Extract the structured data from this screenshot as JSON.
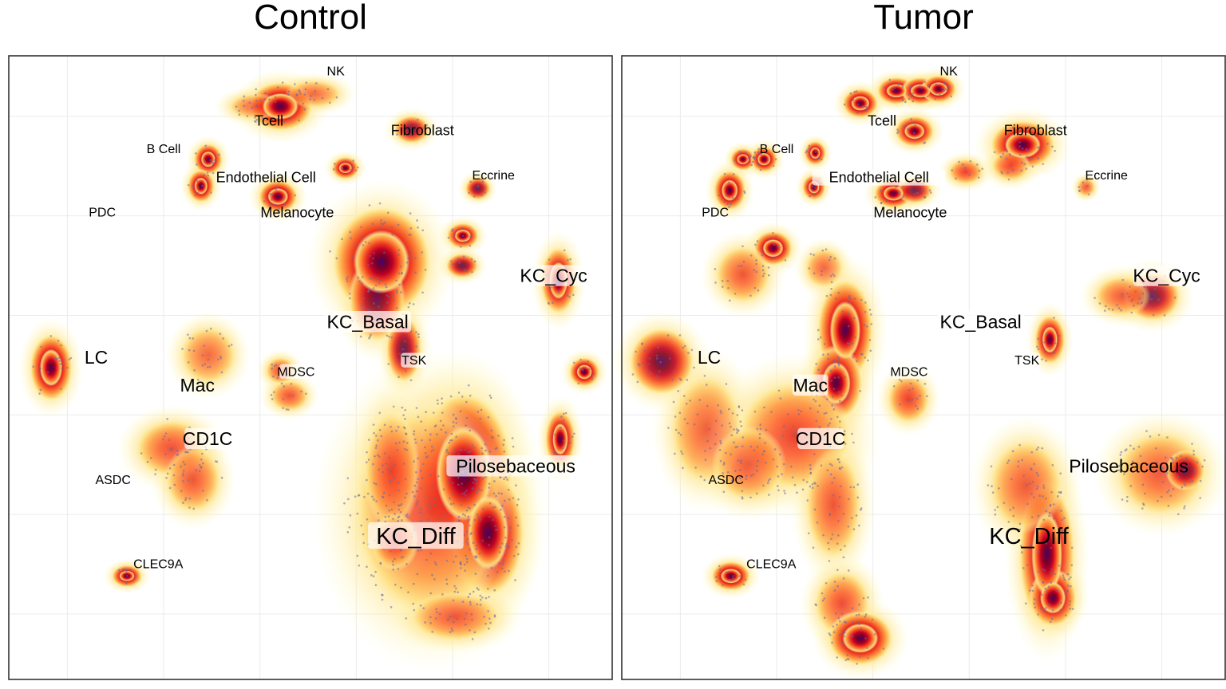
{
  "panels": [
    {
      "title": "Control"
    },
    {
      "title": "Tumor"
    }
  ],
  "chart_data": [
    {
      "type": "scatter",
      "subtype": "2d-density-embedding",
      "title": "Control",
      "xlabel": "",
      "ylabel": "",
      "grid": true,
      "legend": "none",
      "colors": {
        "low": "#ffffcc",
        "mid": "#fd8d3c",
        "high": "#bd0026",
        "peak": "#49006a",
        "point": "#6a6aa0"
      },
      "xlim": [
        0,
        100
      ],
      "ylim": [
        0,
        100
      ],
      "labels": [
        {
          "text": "NK",
          "x": 54.2,
          "y": 97.7,
          "size": "s"
        },
        {
          "text": "Tcell",
          "x": 43.1,
          "y": 89.7,
          "size": "m"
        },
        {
          "text": "Fibroblast",
          "x": 68.6,
          "y": 88.2,
          "size": "m"
        },
        {
          "text": "B Cell",
          "x": 25.6,
          "y": 85.2,
          "size": "s"
        },
        {
          "text": "Endothelial Cell",
          "x": 42.6,
          "y": 80.6,
          "size": "m"
        },
        {
          "text": "Eccrine",
          "x": 80.4,
          "y": 81.0,
          "size": "s"
        },
        {
          "text": "PDC",
          "x": 15.4,
          "y": 75.0,
          "size": "s"
        },
        {
          "text": "Melanocyte",
          "x": 47.8,
          "y": 75.0,
          "size": "m"
        },
        {
          "text": "KC_Cyc",
          "x": 90.4,
          "y": 64.8,
          "size": "l",
          "box": true
        },
        {
          "text": "KC_Basal",
          "x": 59.5,
          "y": 57.4,
          "size": "l",
          "box": true
        },
        {
          "text": "TSK",
          "x": 67.2,
          "y": 51.2,
          "size": "s",
          "box": true
        },
        {
          "text": "LC",
          "x": 14.4,
          "y": 51.7,
          "size": "l"
        },
        {
          "text": "Mac",
          "x": 31.2,
          "y": 47.2,
          "size": "l"
        },
        {
          "text": "MDSC",
          "x": 47.6,
          "y": 49.4,
          "size": "s",
          "box": true
        },
        {
          "text": "CD1C",
          "x": 32.9,
          "y": 38.6,
          "size": "l",
          "box": true
        },
        {
          "text": "Pilosebaceous",
          "x": 84.1,
          "y": 34.2,
          "size": "l",
          "box": true
        },
        {
          "text": "ASDC",
          "x": 17.2,
          "y": 32.0,
          "size": "s"
        },
        {
          "text": "KC_Diff",
          "x": 67.5,
          "y": 23.0,
          "size": "xl",
          "box": true
        },
        {
          "text": "CLEC9A",
          "x": 24.7,
          "y": 18.5,
          "size": "s"
        }
      ],
      "density_hotspots": [
        {
          "x": 45.0,
          "y": 92.0,
          "rx": 3.5,
          "ry": 2.5,
          "level": 1.0
        },
        {
          "x": 41.0,
          "y": 92.0,
          "rx": 3.0,
          "ry": 1.2,
          "level": 0.35
        },
        {
          "x": 50.5,
          "y": 94.0,
          "rx": 3.0,
          "ry": 1.3,
          "level": 0.25
        },
        {
          "x": 33.0,
          "y": 83.5,
          "rx": 1.4,
          "ry": 1.5,
          "level": 0.95
        },
        {
          "x": 31.8,
          "y": 79.2,
          "rx": 1.3,
          "ry": 1.6,
          "level": 0.95
        },
        {
          "x": 44.6,
          "y": 77.5,
          "rx": 2.0,
          "ry": 1.6,
          "level": 1.0
        },
        {
          "x": 55.8,
          "y": 82.1,
          "rx": 1.3,
          "ry": 1.0,
          "level": 0.9
        },
        {
          "x": 66.8,
          "y": 88.3,
          "rx": 1.8,
          "ry": 1.3,
          "level": 0.7
        },
        {
          "x": 77.8,
          "y": 78.8,
          "rx": 1.2,
          "ry": 1.0,
          "level": 0.75
        },
        {
          "x": 75.3,
          "y": 71.2,
          "rx": 1.6,
          "ry": 1.2,
          "level": 0.85
        },
        {
          "x": 75.2,
          "y": 66.4,
          "rx": 1.6,
          "ry": 1.1,
          "level": 0.75
        },
        {
          "x": 61.8,
          "y": 67.0,
          "rx": 5.5,
          "ry": 6.0,
          "level": 1.0
        },
        {
          "x": 61.0,
          "y": 61.0,
          "rx": 3.0,
          "ry": 4.5,
          "level": 0.7
        },
        {
          "x": 65.5,
          "y": 53.0,
          "rx": 1.8,
          "ry": 3.5,
          "level": 0.75
        },
        {
          "x": 91.2,
          "y": 64.0,
          "rx": 1.8,
          "ry": 3.5,
          "level": 0.85
        },
        {
          "x": 95.5,
          "y": 49.3,
          "rx": 1.5,
          "ry": 1.4,
          "level": 1.0
        },
        {
          "x": 91.5,
          "y": 38.5,
          "rx": 1.5,
          "ry": 3.0,
          "level": 0.9
        },
        {
          "x": 6.9,
          "y": 50.0,
          "rx": 2.2,
          "ry": 3.5,
          "level": 1.0
        },
        {
          "x": 33.0,
          "y": 52.0,
          "rx": 3.0,
          "ry": 3.0,
          "level": 0.25
        },
        {
          "x": 45.0,
          "y": 49.5,
          "rx": 1.5,
          "ry": 1.3,
          "level": 0.55
        },
        {
          "x": 46.5,
          "y": 45.5,
          "rx": 2.0,
          "ry": 1.5,
          "level": 0.45
        },
        {
          "x": 27.0,
          "y": 37.0,
          "rx": 4.0,
          "ry": 3.0,
          "level": 0.55
        },
        {
          "x": 30.5,
          "y": 32.0,
          "rx": 3.0,
          "ry": 3.5,
          "level": 0.45
        },
        {
          "x": 19.5,
          "y": 16.5,
          "rx": 1.5,
          "ry": 1.0,
          "level": 0.85
        },
        {
          "x": 75.5,
          "y": 33.0,
          "rx": 5.5,
          "ry": 9.0,
          "level": 1.0
        },
        {
          "x": 79.5,
          "y": 23.5,
          "rx": 4.0,
          "ry": 7.0,
          "level": 0.85
        },
        {
          "x": 70.0,
          "y": 27.0,
          "rx": 9.0,
          "ry": 12.0,
          "level": 0.6
        },
        {
          "x": 63.5,
          "y": 33.5,
          "rx": 3.0,
          "ry": 6.5,
          "level": 0.55
        },
        {
          "x": 64.0,
          "y": 22.0,
          "rx": 2.5,
          "ry": 3.0,
          "level": 0.6
        },
        {
          "x": 74.0,
          "y": 10.0,
          "rx": 5.0,
          "ry": 2.5,
          "level": 0.45
        }
      ]
    },
    {
      "type": "scatter",
      "subtype": "2d-density-embedding",
      "title": "Tumor",
      "xlabel": "",
      "ylabel": "",
      "grid": true,
      "legend": "none",
      "colors": {
        "low": "#ffffcc",
        "mid": "#fd8d3c",
        "high": "#bd0026",
        "peak": "#49006a",
        "point": "#6a6aa0"
      },
      "xlim": [
        0,
        100
      ],
      "ylim": [
        0,
        100
      ],
      "labels": [
        {
          "text": "NK",
          "x": 54.2,
          "y": 97.7,
          "size": "s"
        },
        {
          "text": "Tcell",
          "x": 43.1,
          "y": 89.7,
          "size": "m"
        },
        {
          "text": "Fibroblast",
          "x": 68.6,
          "y": 88.2,
          "size": "m"
        },
        {
          "text": "B Cell",
          "x": 25.6,
          "y": 85.2,
          "size": "s"
        },
        {
          "text": "Endothelial Cell",
          "x": 42.6,
          "y": 80.6,
          "size": "m",
          "box": true
        },
        {
          "text": "Eccrine",
          "x": 80.4,
          "y": 81.0,
          "size": "s"
        },
        {
          "text": "PDC",
          "x": 15.4,
          "y": 75.0,
          "size": "s"
        },
        {
          "text": "Melanocyte",
          "x": 47.8,
          "y": 75.0,
          "size": "m"
        },
        {
          "text": "KC_Cyc",
          "x": 90.4,
          "y": 64.8,
          "size": "l",
          "box": true
        },
        {
          "text": "KC_Basal",
          "x": 59.5,
          "y": 57.4,
          "size": "l",
          "box": true
        },
        {
          "text": "TSK",
          "x": 67.2,
          "y": 51.2,
          "size": "s",
          "box": true
        },
        {
          "text": "LC",
          "x": 14.4,
          "y": 51.7,
          "size": "l"
        },
        {
          "text": "Mac",
          "x": 31.2,
          "y": 47.2,
          "size": "l",
          "box": true
        },
        {
          "text": "MDSC",
          "x": 47.6,
          "y": 49.4,
          "size": "s",
          "box": true
        },
        {
          "text": "CD1C",
          "x": 32.9,
          "y": 38.6,
          "size": "l",
          "box": true
        },
        {
          "text": "Pilosebaceous",
          "x": 84.1,
          "y": 34.2,
          "size": "l"
        },
        {
          "text": "ASDC",
          "x": 17.2,
          "y": 32.0,
          "size": "s"
        },
        {
          "text": "KC_Diff",
          "x": 67.5,
          "y": 23.0,
          "size": "xl"
        },
        {
          "text": "CLEC9A",
          "x": 24.7,
          "y": 18.5,
          "size": "s"
        }
      ],
      "density_hotspots": [
        {
          "x": 39.5,
          "y": 92.5,
          "rx": 1.8,
          "ry": 1.4,
          "level": 1.0
        },
        {
          "x": 45.5,
          "y": 94.5,
          "rx": 2.0,
          "ry": 1.3,
          "level": 1.0
        },
        {
          "x": 49.5,
          "y": 94.5,
          "rx": 2.0,
          "ry": 1.3,
          "level": 1.0
        },
        {
          "x": 52.5,
          "y": 94.8,
          "rx": 1.8,
          "ry": 1.3,
          "level": 1.0
        },
        {
          "x": 48.5,
          "y": 88.0,
          "rx": 2.0,
          "ry": 1.5,
          "level": 0.9
        },
        {
          "x": 20.0,
          "y": 83.5,
          "rx": 1.2,
          "ry": 1.0,
          "level": 0.9
        },
        {
          "x": 23.5,
          "y": 83.5,
          "rx": 1.3,
          "ry": 1.2,
          "level": 0.95
        },
        {
          "x": 17.8,
          "y": 78.5,
          "rx": 1.6,
          "ry": 2.0,
          "level": 1.0
        },
        {
          "x": 32.0,
          "y": 84.5,
          "rx": 1.0,
          "ry": 1.1,
          "level": 0.85
        },
        {
          "x": 31.8,
          "y": 79.0,
          "rx": 1.1,
          "ry": 1.2,
          "level": 0.85
        },
        {
          "x": 45.0,
          "y": 78.0,
          "rx": 2.0,
          "ry": 1.4,
          "level": 1.0
        },
        {
          "x": 48.5,
          "y": 78.5,
          "rx": 1.8,
          "ry": 1.2,
          "level": 0.7
        },
        {
          "x": 57.0,
          "y": 81.5,
          "rx": 1.8,
          "ry": 1.2,
          "level": 0.65
        },
        {
          "x": 66.5,
          "y": 85.8,
          "rx": 3.5,
          "ry": 2.5,
          "level": 1.0
        },
        {
          "x": 64.5,
          "y": 82.5,
          "rx": 2.0,
          "ry": 1.5,
          "level": 0.65
        },
        {
          "x": 77.0,
          "y": 79.0,
          "rx": 0.8,
          "ry": 0.8,
          "level": 0.4
        },
        {
          "x": 25.0,
          "y": 69.2,
          "rx": 2.0,
          "ry": 1.7,
          "level": 1.0
        },
        {
          "x": 20.0,
          "y": 65.0,
          "rx": 3.0,
          "ry": 3.0,
          "level": 0.45
        },
        {
          "x": 33.5,
          "y": 66.0,
          "rx": 2.0,
          "ry": 2.0,
          "level": 0.3
        },
        {
          "x": 37.0,
          "y": 56.0,
          "rx": 3.0,
          "ry": 5.5,
          "level": 1.0
        },
        {
          "x": 35.5,
          "y": 47.5,
          "rx": 2.8,
          "ry": 4.0,
          "level": 0.85
        },
        {
          "x": 47.5,
          "y": 45.0,
          "rx": 2.2,
          "ry": 2.5,
          "level": 0.65
        },
        {
          "x": 6.5,
          "y": 51.0,
          "rx": 3.5,
          "ry": 3.5,
          "level": 0.8
        },
        {
          "x": 14.0,
          "y": 40.0,
          "rx": 4.0,
          "ry": 6.0,
          "level": 0.35
        },
        {
          "x": 28.5,
          "y": 39.0,
          "rx": 6.5,
          "ry": 6.0,
          "level": 0.65
        },
        {
          "x": 21.0,
          "y": 34.5,
          "rx": 4.0,
          "ry": 4.0,
          "level": 0.45
        },
        {
          "x": 35.0,
          "y": 28.0,
          "rx": 3.0,
          "ry": 6.0,
          "level": 0.45
        },
        {
          "x": 36.5,
          "y": 12.0,
          "rx": 3.0,
          "ry": 3.5,
          "level": 0.55
        },
        {
          "x": 39.5,
          "y": 6.5,
          "rx": 3.5,
          "ry": 2.8,
          "level": 1.0
        },
        {
          "x": 18.0,
          "y": 16.5,
          "rx": 2.0,
          "ry": 1.4,
          "level": 1.0
        },
        {
          "x": 71.0,
          "y": 54.5,
          "rx": 1.5,
          "ry": 2.5,
          "level": 0.85
        },
        {
          "x": 88.0,
          "y": 61.5,
          "rx": 3.0,
          "ry": 2.5,
          "level": 0.7
        },
        {
          "x": 83.0,
          "y": 61.5,
          "rx": 3.0,
          "ry": 2.0,
          "level": 0.4
        },
        {
          "x": 70.5,
          "y": 20.0,
          "rx": 3.0,
          "ry": 8.0,
          "level": 0.85
        },
        {
          "x": 71.5,
          "y": 13.0,
          "rx": 2.5,
          "ry": 3.0,
          "level": 0.9
        },
        {
          "x": 67.0,
          "y": 31.0,
          "rx": 4.0,
          "ry": 5.0,
          "level": 0.4
        },
        {
          "x": 89.5,
          "y": 33.0,
          "rx": 5.0,
          "ry": 4.5,
          "level": 0.45
        },
        {
          "x": 93.5,
          "y": 33.5,
          "rx": 2.0,
          "ry": 2.0,
          "level": 0.75
        }
      ]
    }
  ]
}
